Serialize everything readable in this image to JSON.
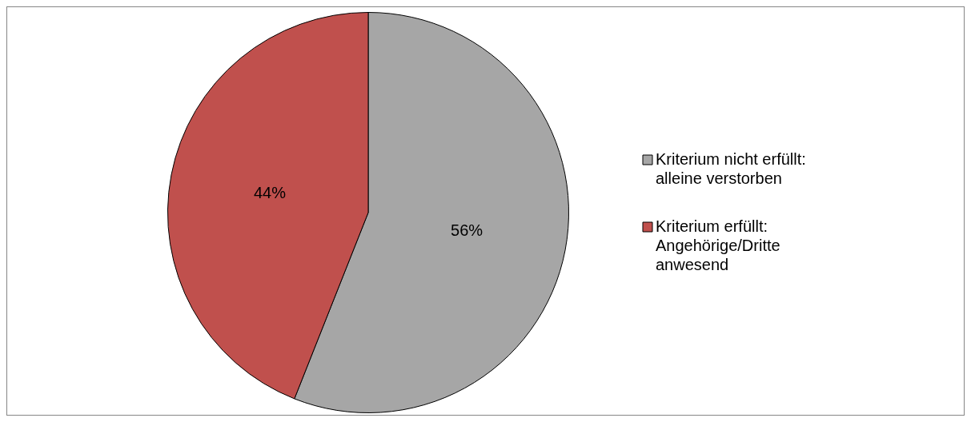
{
  "chart_data": {
    "type": "pie",
    "categories": [
      "Kriterium nicht erfüllt: alleine verstorben",
      "Kriterium erfüllt: Angehörige/Dritte anwesend"
    ],
    "values": [
      56,
      44
    ],
    "colors": [
      "#a6a6a6",
      "#c0504d"
    ],
    "value_labels": [
      "56%",
      "44%"
    ],
    "legend": "right"
  }
}
